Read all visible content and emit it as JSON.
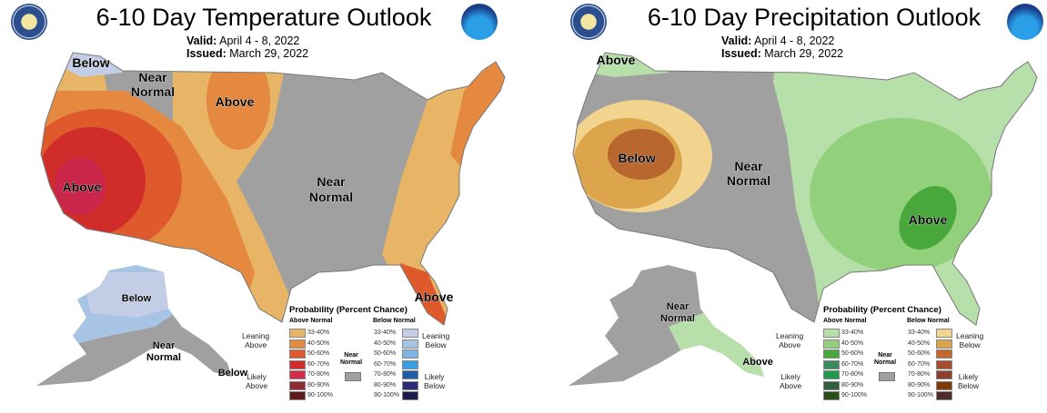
{
  "temperature": {
    "title": "6-10 Day Temperature Outlook",
    "valid_label": "Valid:",
    "valid": "April 4 - 8, 2022",
    "issued_label": "Issued:",
    "issued": "March 29, 2022",
    "regions": {
      "below_nw": "Below",
      "near_normal_nw": [
        "Near",
        "Normal"
      ],
      "above_plains": "Above",
      "above_ca": "Above",
      "near_normal_central": [
        "Near",
        "Normal"
      ],
      "above_fl": "Above",
      "below_ak": "Below",
      "near_normal_ak": [
        "Near",
        "Normal"
      ],
      "below_ak_panhandle": "Below"
    },
    "colors": {
      "near_normal": "#a0a0a0",
      "leaning_33_40": "#e8b465",
      "leaning_40_50": "#e4893f",
      "likely_50_60": "#de5a2c",
      "likely_60_70": "#cf2c2a",
      "likely_70_80": "#c9264a",
      "below_33_40": "#c3cde6",
      "below_40_50": "#a8c4e4"
    },
    "legend": {
      "title": "Probability (Percent Chance)",
      "above_header": "Above Normal",
      "below_header": "Below Normal",
      "leaning_above": [
        "Leaning",
        "Above"
      ],
      "likely_above": [
        "Likely",
        "Above"
      ],
      "leaning_below": [
        "Leaning",
        "Below"
      ],
      "likely_below": [
        "Likely",
        "Below"
      ],
      "near_normal": [
        "Near",
        "Normal"
      ],
      "ranges": [
        "33-40%",
        "40-50%",
        "50-60%",
        "60-70%",
        "70-80%",
        "80-90%",
        "90-100%"
      ],
      "above_colors": [
        "#e8b465",
        "#e4893f",
        "#de5a2c",
        "#cf2c2a",
        "#d42a48",
        "#8e2a32",
        "#5e1a1a"
      ],
      "below_colors": [
        "#c3cde6",
        "#a8c4e4",
        "#7fb6e6",
        "#3a9ee0",
        "#1d5ea8",
        "#2e2a7a",
        "#1e1a4e"
      ]
    }
  },
  "precipitation": {
    "title": "6-10 Day Precipitation Outlook",
    "valid_label": "Valid:",
    "valid": "April 4 - 8, 2022",
    "issued_label": "Issued:",
    "issued": "March 29, 2022",
    "regions": {
      "above_nw": "Above",
      "below_west": "Below",
      "near_normal_central": [
        "Near",
        "Normal"
      ],
      "above_southeast": "Above",
      "near_normal_ak": [
        "Near",
        "Normal"
      ],
      "above_ak_panhandle": "Above"
    },
    "colors": {
      "near_normal": "#a0a0a0",
      "above_33_40": "#b7dfa9",
      "above_40_50": "#92d07c",
      "above_50_60": "#48a83b",
      "below_33_40": "#f2d48e",
      "below_40_50": "#dda54b",
      "below_50_60": "#b8672e"
    },
    "legend": {
      "title": "Probability (Percent Chance)",
      "above_header": "Above Normal",
      "below_header": "Below Normal",
      "leaning_above": [
        "Leaning",
        "Above"
      ],
      "likely_above": [
        "Likely",
        "Above"
      ],
      "leaning_below": [
        "Leaning",
        "Below"
      ],
      "likely_below": [
        "Likely",
        "Below"
      ],
      "near_normal": [
        "Near",
        "Normal"
      ],
      "ranges": [
        "33-40%",
        "40-50%",
        "50-60%",
        "60-70%",
        "70-80%",
        "80-90%",
        "90-100%"
      ],
      "above_colors": [
        "#b7dfa9",
        "#92d07c",
        "#48a83b",
        "#3a8a5e",
        "#1e9a48",
        "#2e5e3e",
        "#2a4e1a"
      ],
      "below_colors": [
        "#f2d48e",
        "#dda54b",
        "#c06a32",
        "#a44e2e",
        "#8e3e2e",
        "#7e3a0a",
        "#4e2a28"
      ]
    }
  }
}
